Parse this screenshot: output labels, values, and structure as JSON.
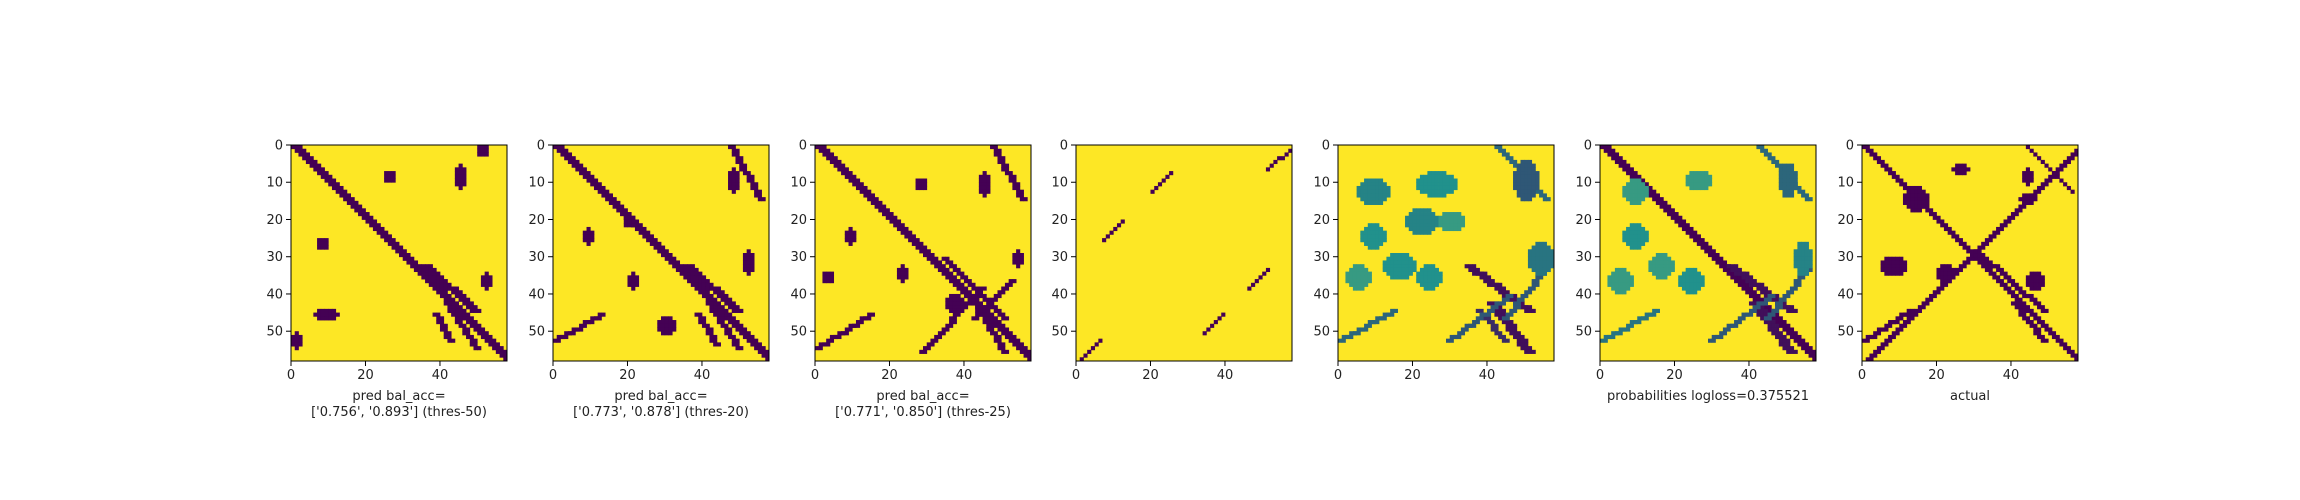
{
  "colors": {
    "low": "#440154",
    "mid": "#21918c",
    "high": "#fde725",
    "axis": "#000000"
  },
  "chart_data": [
    {
      "type": "heatmap",
      "panel": "thresholded-prediction-50",
      "xticks": [
        0,
        20,
        40
      ],
      "yticks": [
        0,
        10,
        20,
        30,
        40,
        50
      ],
      "xlim": [
        0,
        58
      ],
      "ylim": [
        0,
        58
      ],
      "grid_size": 58,
      "value_range": [
        0,
        1
      ],
      "xlabel_lines": [
        "pred bal_acc=",
        "['0.756', '0.893'] (thres-50)"
      ],
      "bands": [
        {
          "x": [
            0,
            58
          ],
          "y": [
            0,
            58
          ],
          "width": 3,
          "value": 0
        },
        {
          "x": [
            35,
            48
          ],
          "y": [
            32,
            44
          ],
          "width": 3,
          "value": 0
        },
        {
          "x": [
            41,
            49
          ],
          "y": [
            42,
            54
          ],
          "width": 2,
          "value": 0
        },
        {
          "x": [
            38,
            42
          ],
          "y": [
            45,
            52
          ],
          "width": 2,
          "value": 0
        }
      ],
      "blobs": [
        {
          "x": 45,
          "y": 8,
          "rx": 1,
          "ry": 3,
          "value": 0
        },
        {
          "x": 51,
          "y": 1,
          "rx": 1,
          "ry": 1,
          "value": 0
        },
        {
          "x": 26,
          "y": 8,
          "rx": 1,
          "ry": 1,
          "value": 0
        },
        {
          "x": 8,
          "y": 26,
          "rx": 1,
          "ry": 1,
          "value": 0
        },
        {
          "x": 9,
          "y": 45,
          "rx": 3,
          "ry": 1,
          "value": 0
        },
        {
          "x": 52,
          "y": 36,
          "rx": 1,
          "ry": 2,
          "value": 0
        },
        {
          "x": 1,
          "y": 52,
          "rx": 1,
          "ry": 2,
          "value": 0
        }
      ]
    },
    {
      "type": "heatmap",
      "panel": "thresholded-prediction-20",
      "xticks": [
        0,
        20,
        40
      ],
      "yticks": [
        0,
        10,
        20,
        30,
        40,
        50
      ],
      "xlim": [
        0,
        58
      ],
      "ylim": [
        0,
        58
      ],
      "grid_size": 58,
      "value_range": [
        0,
        1
      ],
      "xlabel_lines": [
        "pred bal_acc=",
        "['0.773', '0.878'] (thres-20)"
      ],
      "bands": [
        {
          "x": [
            0,
            58
          ],
          "y": [
            0,
            58
          ],
          "width": 3,
          "value": 0
        },
        {
          "x": [
            35,
            48
          ],
          "y": [
            32,
            44
          ],
          "width": 3,
          "value": 0
        },
        {
          "x": [
            41,
            49
          ],
          "y": [
            42,
            54
          ],
          "width": 2,
          "value": 0
        },
        {
          "x": [
            38,
            43
          ],
          "y": [
            45,
            53
          ],
          "width": 2,
          "value": 0
        },
        {
          "x": [
            47,
            55
          ],
          "y": [
            0,
            14
          ],
          "width": 2,
          "value": 0
        },
        {
          "x": [
            0,
            12
          ],
          "y": [
            52,
            45
          ],
          "width": 2,
          "value": 0
        }
      ],
      "blobs": [
        {
          "x": 48,
          "y": 9,
          "rx": 1,
          "ry": 3,
          "value": 0
        },
        {
          "x": 9,
          "y": 24,
          "rx": 1,
          "ry": 2,
          "value": 0
        },
        {
          "x": 20,
          "y": 20,
          "rx": 1,
          "ry": 1,
          "value": 0
        },
        {
          "x": 21,
          "y": 36,
          "rx": 1,
          "ry": 2,
          "value": 0
        },
        {
          "x": 30,
          "y": 48,
          "rx": 2,
          "ry": 2,
          "value": 0
        },
        {
          "x": 52,
          "y": 31,
          "rx": 1,
          "ry": 3,
          "value": 0
        }
      ]
    },
    {
      "type": "heatmap",
      "panel": "thresholded-prediction-25",
      "xticks": [
        0,
        20,
        40
      ],
      "yticks": [
        0,
        10,
        20,
        30,
        40,
        50
      ],
      "xlim": [
        0,
        58
      ],
      "ylim": [
        0,
        58
      ],
      "grid_size": 58,
      "value_range": [
        0,
        1
      ],
      "xlabel_lines": [
        "pred bal_acc=",
        "['0.771', '0.850'] (thres-25)"
      ],
      "bands": [
        {
          "x": [
            0,
            58
          ],
          "y": [
            0,
            58
          ],
          "width": 3,
          "value": 0
        },
        {
          "x": [
            34,
            50
          ],
          "y": [
            30,
            46
          ],
          "width": 2,
          "value": 0
        },
        {
          "x": [
            41,
            50
          ],
          "y": [
            40,
            55
          ],
          "width": 2,
          "value": 0
        },
        {
          "x": [
            47,
            55
          ],
          "y": [
            0,
            14
          ],
          "width": 2,
          "value": 0
        },
        {
          "x": [
            0,
            14
          ],
          "y": [
            54,
            45
          ],
          "width": 2,
          "value": 0
        },
        {
          "x": [
            28,
            44
          ],
          "y": [
            55,
            38
          ],
          "width": 2,
          "value": 0
        },
        {
          "x": [
            42,
            52
          ],
          "y": [
            46,
            36
          ],
          "width": 2,
          "value": 0
        }
      ],
      "blobs": [
        {
          "x": 45,
          "y": 10,
          "rx": 1,
          "ry": 3,
          "value": 0
        },
        {
          "x": 28,
          "y": 10,
          "rx": 1,
          "ry": 1,
          "value": 0
        },
        {
          "x": 9,
          "y": 24,
          "rx": 1,
          "ry": 2,
          "value": 0
        },
        {
          "x": 23,
          "y": 34,
          "rx": 1,
          "ry": 2,
          "value": 0
        },
        {
          "x": 3,
          "y": 35,
          "rx": 1,
          "ry": 1,
          "value": 0
        },
        {
          "x": 54,
          "y": 30,
          "rx": 1,
          "ry": 2,
          "value": 0
        },
        {
          "x": 37,
          "y": 42,
          "rx": 2,
          "ry": 2,
          "value": 0
        }
      ]
    },
    {
      "type": "heatmap",
      "panel": "sparse-pairs",
      "xticks": [
        0,
        20,
        40
      ],
      "yticks": [
        0,
        10,
        20,
        30,
        40,
        50
      ],
      "xlim": [
        0,
        58
      ],
      "ylim": [
        0,
        58
      ],
      "grid_size": 58,
      "value_range": [
        0,
        1
      ],
      "xlabel_lines": [],
      "bands": [
        {
          "x": [
            51,
            58
          ],
          "y": [
            6,
            0
          ],
          "width": 1,
          "value": 0
        },
        {
          "x": [
            20,
            25
          ],
          "y": [
            12,
            7
          ],
          "width": 1,
          "value": 0
        },
        {
          "x": [
            7,
            12
          ],
          "y": [
            25,
            20
          ],
          "width": 1,
          "value": 0
        },
        {
          "x": [
            46,
            51
          ],
          "y": [
            38,
            33
          ],
          "width": 1,
          "value": 0
        },
        {
          "x": [
            34,
            39
          ],
          "y": [
            50,
            45
          ],
          "width": 1,
          "value": 0
        },
        {
          "x": [
            0,
            6
          ],
          "y": [
            58,
            52
          ],
          "width": 1,
          "value": 0
        }
      ],
      "blobs": []
    },
    {
      "type": "heatmap",
      "panel": "raw-probabilities",
      "xticks": [
        0,
        20,
        40
      ],
      "yticks": [
        0,
        10,
        20,
        30,
        40,
        50
      ],
      "xlim": [
        0,
        58
      ],
      "ylim": [
        0,
        58
      ],
      "grid_size": 58,
      "value_range": [
        0,
        1
      ],
      "xlabel_lines": [],
      "bands": [
        {
          "x": [
            34,
            50
          ],
          "y": [
            32,
            44
          ],
          "width": 3,
          "value": 0.05
        },
        {
          "x": [
            40,
            50
          ],
          "y": [
            42,
            55
          ],
          "width": 3,
          "value": 0.05
        },
        {
          "x": [
            37,
            44
          ],
          "y": [
            44,
            52
          ],
          "width": 2,
          "value": 0.15
        },
        {
          "x": [
            42,
            55
          ],
          "y": [
            0,
            14
          ],
          "width": 2,
          "value": 0.35
        },
        {
          "x": [
            0,
            14
          ],
          "y": [
            52,
            44
          ],
          "width": 2,
          "value": 0.35
        },
        {
          "x": [
            29,
            45
          ],
          "y": [
            52,
            40
          ],
          "width": 2,
          "value": 0.3
        },
        {
          "x": [
            44,
            55
          ],
          "y": [
            46,
            33
          ],
          "width": 2,
          "value": 0.3
        }
      ],
      "blobs": [
        {
          "x": 9,
          "y": 12,
          "rx": 4,
          "ry": 3,
          "value": 0.45
        },
        {
          "x": 26,
          "y": 10,
          "rx": 5,
          "ry": 3,
          "value": 0.5
        },
        {
          "x": 9,
          "y": 24,
          "rx": 3,
          "ry": 3,
          "value": 0.5
        },
        {
          "x": 22,
          "y": 20,
          "rx": 4,
          "ry": 3,
          "value": 0.45
        },
        {
          "x": 30,
          "y": 20,
          "rx": 3,
          "ry": 2,
          "value": 0.55
        },
        {
          "x": 16,
          "y": 32,
          "rx": 4,
          "ry": 3,
          "value": 0.5
        },
        {
          "x": 5,
          "y": 35,
          "rx": 3,
          "ry": 3,
          "value": 0.55
        },
        {
          "x": 24,
          "y": 35,
          "rx": 3,
          "ry": 3,
          "value": 0.5
        },
        {
          "x": 50,
          "y": 9,
          "rx": 3,
          "ry": 5,
          "value": 0.3
        },
        {
          "x": 54,
          "y": 30,
          "rx": 3,
          "ry": 4,
          "value": 0.4
        }
      ]
    },
    {
      "type": "heatmap",
      "panel": "probabilities",
      "xticks": [
        0,
        20,
        40
      ],
      "yticks": [
        0,
        10,
        20,
        30,
        40,
        50
      ],
      "xlim": [
        0,
        58
      ],
      "ylim": [
        0,
        58
      ],
      "grid_size": 58,
      "value_range": [
        0,
        1
      ],
      "xlabel_lines": [
        "probabilities logloss=0.375521"
      ],
      "bands": [
        {
          "x": [
            0,
            58
          ],
          "y": [
            0,
            58
          ],
          "width": 3,
          "value": 0
        },
        {
          "x": [
            34,
            50
          ],
          "y": [
            32,
            44
          ],
          "width": 3,
          "value": 0.05
        },
        {
          "x": [
            40,
            50
          ],
          "y": [
            42,
            55
          ],
          "width": 3,
          "value": 0.05
        },
        {
          "x": [
            42,
            55
          ],
          "y": [
            0,
            14
          ],
          "width": 2,
          "value": 0.35
        },
        {
          "x": [
            0,
            14
          ],
          "y": [
            52,
            44
          ],
          "width": 2,
          "value": 0.4
        },
        {
          "x": [
            29,
            45
          ],
          "y": [
            52,
            40
          ],
          "width": 2,
          "value": 0.3
        },
        {
          "x": [
            44,
            55
          ],
          "y": [
            46,
            33
          ],
          "width": 2,
          "value": 0.3
        }
      ],
      "blobs": [
        {
          "x": 9,
          "y": 12,
          "rx": 3,
          "ry": 3,
          "value": 0.55
        },
        {
          "x": 26,
          "y": 9,
          "rx": 3,
          "ry": 2,
          "value": 0.55
        },
        {
          "x": 9,
          "y": 24,
          "rx": 3,
          "ry": 3,
          "value": 0.5
        },
        {
          "x": 16,
          "y": 32,
          "rx": 3,
          "ry": 3,
          "value": 0.55
        },
        {
          "x": 5,
          "y": 36,
          "rx": 3,
          "ry": 3,
          "value": 0.55
        },
        {
          "x": 24,
          "y": 36,
          "rx": 3,
          "ry": 3,
          "value": 0.5
        },
        {
          "x": 50,
          "y": 9,
          "rx": 2,
          "ry": 4,
          "value": 0.35
        },
        {
          "x": 54,
          "y": 30,
          "rx": 2,
          "ry": 4,
          "value": 0.45
        }
      ]
    },
    {
      "type": "heatmap",
      "panel": "actual",
      "xticks": [
        0,
        20,
        40
      ],
      "yticks": [
        0,
        10,
        20,
        30,
        40,
        50
      ],
      "xlim": [
        0,
        58
      ],
      "ylim": [
        0,
        58
      ],
      "grid_size": 58,
      "value_range": [
        0,
        1
      ],
      "xlabel_lines": [
        "actual"
      ],
      "bands": [
        {
          "x": [
            0,
            58
          ],
          "y": [
            0,
            58
          ],
          "width": 2,
          "value": 0
        },
        {
          "x": [
            0,
            58
          ],
          "y": [
            58,
            0
          ],
          "width": 2,
          "value": 0
        },
        {
          "x": [
            30,
            48
          ],
          "y": [
            28,
            44
          ],
          "width": 2,
          "value": 0
        },
        {
          "x": [
            40,
            48
          ],
          "y": [
            42,
            52
          ],
          "width": 2,
          "value": 0
        },
        {
          "x": [
            0,
            12
          ],
          "y": [
            52,
            44
          ],
          "width": 2,
          "value": 0
        },
        {
          "x": [
            44,
            56
          ],
          "y": [
            0,
            12
          ],
          "width": 1,
          "value": 0
        }
      ],
      "blobs": [
        {
          "x": 14,
          "y": 14,
          "rx": 3,
          "ry": 3,
          "value": 0
        },
        {
          "x": 26,
          "y": 6,
          "rx": 2,
          "ry": 1,
          "value": 0
        },
        {
          "x": 8,
          "y": 32,
          "rx": 3,
          "ry": 2,
          "value": 0
        },
        {
          "x": 22,
          "y": 34,
          "rx": 2,
          "ry": 2,
          "value": 0
        },
        {
          "x": 44,
          "y": 14,
          "rx": 2,
          "ry": 1,
          "value": 0
        },
        {
          "x": 46,
          "y": 36,
          "rx": 2,
          "ry": 2,
          "value": 0
        },
        {
          "x": 44,
          "y": 8,
          "rx": 1,
          "ry": 2,
          "value": 0
        }
      ]
    }
  ]
}
